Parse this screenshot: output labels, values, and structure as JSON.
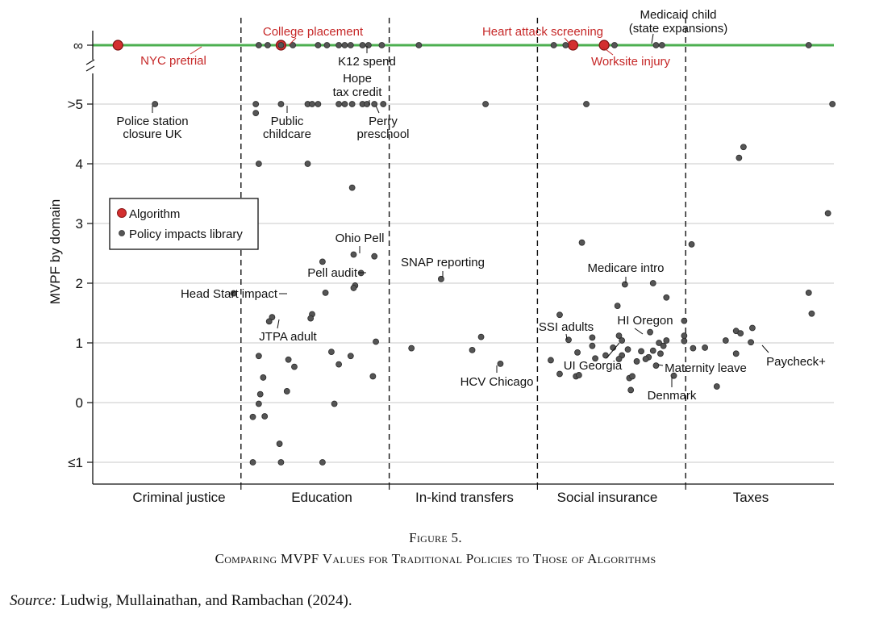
{
  "chart_data": {
    "type": "scatter",
    "ylabel": "MVPF by domain",
    "xlabel": "",
    "categories": [
      "Criminal justice",
      "Education",
      "In-kind transfers",
      "Social insurance",
      "Taxes"
    ],
    "y_ticks": [
      {
        "value": -1,
        "label": "≤1"
      },
      {
        "value": 0,
        "label": "0"
      },
      {
        "value": 1,
        "label": "1"
      },
      {
        "value": 2,
        "label": "2"
      },
      {
        "value": 3,
        "label": "3"
      },
      {
        "value": 4,
        "label": "4"
      },
      {
        "value": 5,
        "label": ">5"
      },
      {
        "value": "inf",
        "label": "∞"
      }
    ],
    "ylim": [
      -1.35,
      5.6
    ],
    "grid": true,
    "legend_position": "left",
    "legend": [
      {
        "name": "Algorithm",
        "color": "#d32f2f"
      },
      {
        "name": "Policy impacts library",
        "color": "#555555"
      }
    ],
    "colors": {
      "infinity_line": "#4caf50",
      "algorithm": "#d32f2f",
      "library": "#555555"
    },
    "series": [
      {
        "name": "Algorithm",
        "points": [
          {
            "x": 0.17,
            "y": "inf",
            "label": "NYC pretrial"
          },
          {
            "x": 1.27,
            "y": "inf",
            "label": "College placement"
          },
          {
            "x": 3.24,
            "y": "inf",
            "label": "Heart attack screening"
          },
          {
            "x": 3.45,
            "y": "inf",
            "label": "Worksite injury"
          }
        ]
      },
      {
        "name": "Policy impacts library",
        "points": [
          {
            "x": 1.12,
            "y": "inf"
          },
          {
            "x": 1.18,
            "y": "inf"
          },
          {
            "x": 1.27,
            "y": "inf"
          },
          {
            "x": 1.35,
            "y": "inf"
          },
          {
            "x": 1.52,
            "y": "inf"
          },
          {
            "x": 1.58,
            "y": "inf"
          },
          {
            "x": 1.66,
            "y": "inf"
          },
          {
            "x": 1.7,
            "y": "inf"
          },
          {
            "x": 1.74,
            "y": "inf"
          },
          {
            "x": 1.82,
            "y": "inf"
          },
          {
            "x": 1.86,
            "y": "inf",
            "label": "K12 spend"
          },
          {
            "x": 1.95,
            "y": "inf"
          },
          {
            "x": 2.2,
            "y": "inf"
          },
          {
            "x": 3.11,
            "y": "inf"
          },
          {
            "x": 3.19,
            "y": "inf"
          },
          {
            "x": 3.52,
            "y": "inf"
          },
          {
            "x": 3.8,
            "y": "inf"
          },
          {
            "x": 3.84,
            "y": "inf",
            "label": "Medicaid child (state expansions)"
          },
          {
            "x": 4.83,
            "y": "inf"
          },
          {
            "x": 0.42,
            "y": 5,
            "label": "Police station closure UK"
          },
          {
            "x": 1.1,
            "y": 5
          },
          {
            "x": 1.27,
            "y": 5,
            "label": "Public childcare"
          },
          {
            "x": 1.45,
            "y": 5
          },
          {
            "x": 1.48,
            "y": 5
          },
          {
            "x": 1.52,
            "y": 5
          },
          {
            "x": 1.66,
            "y": 5
          },
          {
            "x": 1.7,
            "y": 5
          },
          {
            "x": 1.75,
            "y": 5
          },
          {
            "x": 1.82,
            "y": 5,
            "label": "Hope tax credit"
          },
          {
            "x": 1.85,
            "y": 5
          },
          {
            "x": 1.9,
            "y": 5
          },
          {
            "x": 1.96,
            "y": 5,
            "label": "Perry preschool"
          },
          {
            "x": 2.65,
            "y": 5
          },
          {
            "x": 3.33,
            "y": 5
          },
          {
            "x": 4.99,
            "y": 5
          },
          {
            "x": 1.1,
            "y": 4.85
          },
          {
            "x": 1.12,
            "y": 4.0
          },
          {
            "x": 1.45,
            "y": 4.0
          },
          {
            "x": 1.75,
            "y": 3.6
          },
          {
            "x": 4.39,
            "y": 4.28
          },
          {
            "x": 4.36,
            "y": 4.1
          },
          {
            "x": 4.96,
            "y": 3.17
          },
          {
            "x": 4.04,
            "y": 2.65
          },
          {
            "x": 3.3,
            "y": 2.68
          },
          {
            "x": 1.76,
            "y": 2.48,
            "label": "Ohio Pell"
          },
          {
            "x": 1.9,
            "y": 2.45
          },
          {
            "x": 1.55,
            "y": 2.36
          },
          {
            "x": 1.81,
            "y": 2.17,
            "label": "Pell audit"
          },
          {
            "x": 1.77,
            "y": 1.96
          },
          {
            "x": 1.76,
            "y": 1.92
          },
          {
            "x": 1.57,
            "y": 1.84
          },
          {
            "x": 0.95,
            "y": 1.83,
            "label": "Head Start impact"
          },
          {
            "x": 2.35,
            "y": 2.07,
            "label": "SNAP reporting"
          },
          {
            "x": 3.59,
            "y": 1.98,
            "label": "Medicare intro"
          },
          {
            "x": 3.78,
            "y": 2.0
          },
          {
            "x": 3.87,
            "y": 1.76
          },
          {
            "x": 3.54,
            "y": 1.62
          },
          {
            "x": 4.83,
            "y": 1.84
          },
          {
            "x": 4.85,
            "y": 1.49
          },
          {
            "x": 1.21,
            "y": 1.43
          },
          {
            "x": 1.19,
            "y": 1.36,
            "label": "JTPA adult"
          },
          {
            "x": 1.48,
            "y": 1.48
          },
          {
            "x": 1.47,
            "y": 1.41
          },
          {
            "x": 1.91,
            "y": 1.02
          },
          {
            "x": 1.61,
            "y": 0.85
          },
          {
            "x": 1.66,
            "y": 0.64
          },
          {
            "x": 1.74,
            "y": 0.78
          },
          {
            "x": 1.32,
            "y": 0.72
          },
          {
            "x": 1.36,
            "y": 0.6
          },
          {
            "x": 1.12,
            "y": 0.78
          },
          {
            "x": 1.15,
            "y": 0.42
          },
          {
            "x": 1.13,
            "y": 0.14
          },
          {
            "x": 1.31,
            "y": 0.19
          },
          {
            "x": 1.89,
            "y": 0.44
          },
          {
            "x": 1.12,
            "y": -0.02
          },
          {
            "x": 1.63,
            "y": -0.02
          },
          {
            "x": 1.08,
            "y": -0.24
          },
          {
            "x": 1.16,
            "y": -0.23
          },
          {
            "x": 1.26,
            "y": -0.69
          },
          {
            "x": 1.08,
            "y": -1.0
          },
          {
            "x": 1.27,
            "y": -1.0
          },
          {
            "x": 1.55,
            "y": -1.0
          },
          {
            "x": 2.15,
            "y": 0.91
          },
          {
            "x": 2.56,
            "y": 0.88
          },
          {
            "x": 2.62,
            "y": 1.1
          },
          {
            "x": 2.75,
            "y": 0.65,
            "label": "HCV Chicago"
          },
          {
            "x": 3.15,
            "y": 1.47
          },
          {
            "x": 3.21,
            "y": 1.05,
            "label": "SSI adults"
          },
          {
            "x": 3.09,
            "y": 0.71
          },
          {
            "x": 3.15,
            "y": 0.48
          },
          {
            "x": 3.26,
            "y": 0.44
          },
          {
            "x": 3.27,
            "y": 0.84
          },
          {
            "x": 3.28,
            "y": 0.46
          },
          {
            "x": 3.37,
            "y": 1.09
          },
          {
            "x": 3.37,
            "y": 0.95
          },
          {
            "x": 3.39,
            "y": 0.74
          },
          {
            "x": 3.46,
            "y": 0.79
          },
          {
            "x": 3.55,
            "y": 1.12
          },
          {
            "x": 3.51,
            "y": 0.92
          },
          {
            "x": 3.57,
            "y": 1.04,
            "label": "UI Georgia"
          },
          {
            "x": 3.57,
            "y": 0.79
          },
          {
            "x": 3.61,
            "y": 0.89
          },
          {
            "x": 3.62,
            "y": 0.41
          },
          {
            "x": 3.64,
            "y": 0.44
          },
          {
            "x": 3.63,
            "y": 0.21
          },
          {
            "x": 3.67,
            "y": 0.69
          },
          {
            "x": 3.7,
            "y": 0.86
          },
          {
            "x": 3.78,
            "y": 0.87
          },
          {
            "x": 3.76,
            "y": 1.18,
            "label": "HI Oregon"
          },
          {
            "x": 3.75,
            "y": 0.76
          },
          {
            "x": 3.82,
            "y": 1.0
          },
          {
            "x": 3.85,
            "y": 0.95
          },
          {
            "x": 3.87,
            "y": 1.04
          },
          {
            "x": 3.83,
            "y": 0.82
          },
          {
            "x": 3.8,
            "y": 0.62,
            "label": "Maternity leave"
          },
          {
            "x": 3.92,
            "y": 0.45,
            "label": "Denmark"
          },
          {
            "x": 3.55,
            "y": 0.73
          },
          {
            "x": 3.73,
            "y": 0.73
          },
          {
            "x": 3.99,
            "y": 1.37
          },
          {
            "x": 3.99,
            "y": 1.12
          },
          {
            "x": 3.99,
            "y": 1.03
          },
          {
            "x": 4.05,
            "y": 0.91
          },
          {
            "x": 4.13,
            "y": 0.92
          },
          {
            "x": 4.21,
            "y": 0.27
          },
          {
            "x": 4.27,
            "y": 1.04
          },
          {
            "x": 4.34,
            "y": 1.2
          },
          {
            "x": 4.37,
            "y": 1.16
          },
          {
            "x": 4.34,
            "y": 0.82
          },
          {
            "x": 4.45,
            "y": 1.25
          },
          {
            "x": 4.44,
            "y": 1.01,
            "label": "Paycheck+"
          }
        ]
      }
    ]
  },
  "annotations": {
    "nyc_pretrial": "NYC pretrial",
    "college_placement": "College placement",
    "k12_spend": "K12 spend",
    "heart_attack": "Heart attack screening",
    "worksite_injury": "Worksite injury",
    "medicaid_line1": "Medicaid child",
    "medicaid_line2": "(state expansions)",
    "police_line1": "Police station",
    "police_line2": "closure UK",
    "public_line1": "Public",
    "public_line2": "childcare",
    "hope_line1": "Hope",
    "hope_line2": "tax credit",
    "perry_line1": "Perry",
    "perry_line2": "preschool",
    "ohio_pell": "Ohio Pell",
    "pell_audit": "Pell audit",
    "head_start": "Head Start impact",
    "jtpa": "JTPA adult",
    "snap": "SNAP reporting",
    "hcv": "HCV Chicago",
    "medicare": "Medicare intro",
    "ssi": "SSI adults",
    "hi_oregon": "HI Oregon",
    "ui_georgia": "UI Georgia",
    "maternity": "Maternity leave",
    "denmark": "Denmark",
    "paycheck": "Paycheck+"
  },
  "caption": {
    "figure_number": "Figure 5.",
    "title": "Comparing MVPF Values for Traditional Policies to Those of Algorithms",
    "source_label": "Source:",
    "source_text": "Ludwig, Mullainathan, and Rambachan (2024)."
  }
}
